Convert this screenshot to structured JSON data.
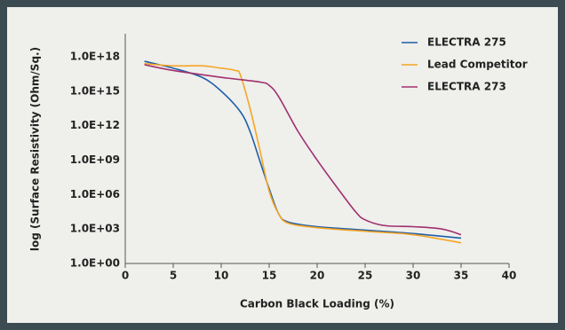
{
  "chart_data": {
    "type": "line",
    "xlabel": "Carbon Black Loading (%)",
    "ylabel": "log (Surface Resistivity (Ohm/Sq.)",
    "xlim": [
      0,
      40
    ],
    "xticks": [
      0,
      5,
      10,
      15,
      20,
      25,
      30,
      35,
      40
    ],
    "ylim": [
      1,
      1e+20
    ],
    "log_y": true,
    "yticks": [
      {
        "value": 1,
        "label": "1.0E+00"
      },
      {
        "value": 1000,
        "label": "1.0E+03"
      },
      {
        "value": 1000000,
        "label": "1.0E+06"
      },
      {
        "value": 1000000000,
        "label": "1.0E+09"
      },
      {
        "value": 1000000000000,
        "label": "1.0E+12"
      },
      {
        "value": 1000000000000000,
        "label": "1.0E+15"
      },
      {
        "value": 1000000000000000000,
        "label": "1.0E+18"
      }
    ],
    "legend": "top-right",
    "series": [
      {
        "name": "ELECTRA 275",
        "color": "#1f5fa8",
        "x": [
          2,
          5,
          8,
          10,
          12,
          13,
          14,
          15,
          16,
          17,
          20,
          25,
          30,
          35
        ],
        "values": [
          4e+17,
          1e+17,
          1.6e+16,
          1000000000000000.0,
          16000000000000.0,
          320000000000.0,
          1000000000.0,
          3200000.0,
          20000.0,
          4000,
          1600,
          800,
          400,
          160
        ]
      },
      {
        "name": "Lead Competitor",
        "color": "#f5a623",
        "x": [
          2,
          5,
          8,
          10,
          11.5,
          12,
          13,
          14,
          15,
          16,
          17,
          20,
          25,
          30,
          35
        ],
        "values": [
          2.5e+17,
          1.6e+17,
          1.6e+17,
          1e+17,
          6.3e+16,
          2.5e+16,
          32000000000000.0,
          10000000000.0,
          2000000.0,
          20000.0,
          3200,
          1300,
          630,
          320,
          63
        ]
      },
      {
        "name": "ELECTRA 273",
        "color": "#a0306e",
        "x": [
          2,
          5,
          10,
          14,
          15,
          16,
          18,
          20,
          22,
          24,
          25,
          27,
          30,
          33,
          35
        ],
        "values": [
          2e+17,
          6.3e+16,
          1.6e+16,
          6300000000000000.0,
          3200000000000000.0,
          320000000000000.0,
          320000000000.0,
          1000000000.0,
          5000000.0,
          32000.0,
          6300,
          2000,
          1600,
          1000,
          320
        ]
      }
    ]
  }
}
